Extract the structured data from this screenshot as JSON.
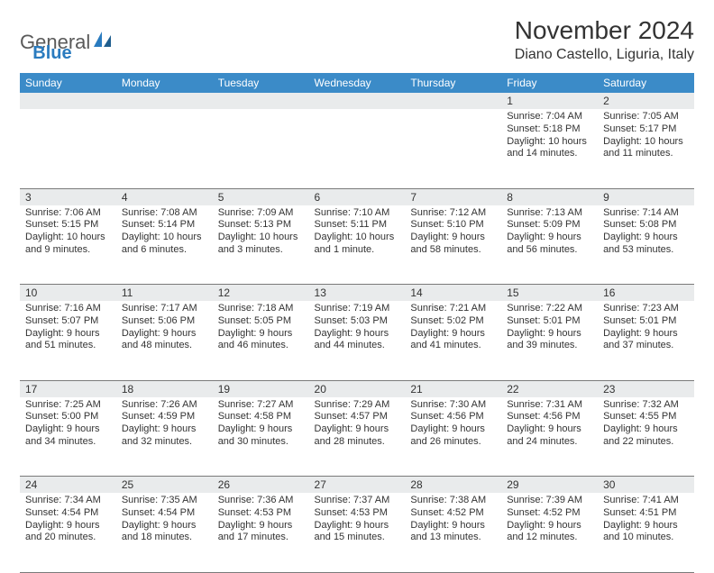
{
  "brand": {
    "name_left": "General",
    "name_right": "Blue"
  },
  "header": {
    "month_title": "November 2024",
    "location": "Diano Castello, Liguria, Italy"
  },
  "style": {
    "header_bg": "#3b8bc8",
    "header_text": "#ffffff",
    "daynum_bg": "#e9ebec",
    "cell_border": "#7a7a7a",
    "body_text": "#333333",
    "font_size_header": 12,
    "font_size_cell": 11
  },
  "days_of_week": [
    "Sunday",
    "Monday",
    "Tuesday",
    "Wednesday",
    "Thursday",
    "Friday",
    "Saturday"
  ],
  "weeks": [
    [
      null,
      null,
      null,
      null,
      null,
      {
        "n": "1",
        "sunrise": "Sunrise: 7:04 AM",
        "sunset": "Sunset: 5:18 PM",
        "day1": "Daylight: 10 hours",
        "day2": "and 14 minutes."
      },
      {
        "n": "2",
        "sunrise": "Sunrise: 7:05 AM",
        "sunset": "Sunset: 5:17 PM",
        "day1": "Daylight: 10 hours",
        "day2": "and 11 minutes."
      }
    ],
    [
      {
        "n": "3",
        "sunrise": "Sunrise: 7:06 AM",
        "sunset": "Sunset: 5:15 PM",
        "day1": "Daylight: 10 hours",
        "day2": "and 9 minutes."
      },
      {
        "n": "4",
        "sunrise": "Sunrise: 7:08 AM",
        "sunset": "Sunset: 5:14 PM",
        "day1": "Daylight: 10 hours",
        "day2": "and 6 minutes."
      },
      {
        "n": "5",
        "sunrise": "Sunrise: 7:09 AM",
        "sunset": "Sunset: 5:13 PM",
        "day1": "Daylight: 10 hours",
        "day2": "and 3 minutes."
      },
      {
        "n": "6",
        "sunrise": "Sunrise: 7:10 AM",
        "sunset": "Sunset: 5:11 PM",
        "day1": "Daylight: 10 hours",
        "day2": "and 1 minute."
      },
      {
        "n": "7",
        "sunrise": "Sunrise: 7:12 AM",
        "sunset": "Sunset: 5:10 PM",
        "day1": "Daylight: 9 hours",
        "day2": "and 58 minutes."
      },
      {
        "n": "8",
        "sunrise": "Sunrise: 7:13 AM",
        "sunset": "Sunset: 5:09 PM",
        "day1": "Daylight: 9 hours",
        "day2": "and 56 minutes."
      },
      {
        "n": "9",
        "sunrise": "Sunrise: 7:14 AM",
        "sunset": "Sunset: 5:08 PM",
        "day1": "Daylight: 9 hours",
        "day2": "and 53 minutes."
      }
    ],
    [
      {
        "n": "10",
        "sunrise": "Sunrise: 7:16 AM",
        "sunset": "Sunset: 5:07 PM",
        "day1": "Daylight: 9 hours",
        "day2": "and 51 minutes."
      },
      {
        "n": "11",
        "sunrise": "Sunrise: 7:17 AM",
        "sunset": "Sunset: 5:06 PM",
        "day1": "Daylight: 9 hours",
        "day2": "and 48 minutes."
      },
      {
        "n": "12",
        "sunrise": "Sunrise: 7:18 AM",
        "sunset": "Sunset: 5:05 PM",
        "day1": "Daylight: 9 hours",
        "day2": "and 46 minutes."
      },
      {
        "n": "13",
        "sunrise": "Sunrise: 7:19 AM",
        "sunset": "Sunset: 5:03 PM",
        "day1": "Daylight: 9 hours",
        "day2": "and 44 minutes."
      },
      {
        "n": "14",
        "sunrise": "Sunrise: 7:21 AM",
        "sunset": "Sunset: 5:02 PM",
        "day1": "Daylight: 9 hours",
        "day2": "and 41 minutes."
      },
      {
        "n": "15",
        "sunrise": "Sunrise: 7:22 AM",
        "sunset": "Sunset: 5:01 PM",
        "day1": "Daylight: 9 hours",
        "day2": "and 39 minutes."
      },
      {
        "n": "16",
        "sunrise": "Sunrise: 7:23 AM",
        "sunset": "Sunset: 5:01 PM",
        "day1": "Daylight: 9 hours",
        "day2": "and 37 minutes."
      }
    ],
    [
      {
        "n": "17",
        "sunrise": "Sunrise: 7:25 AM",
        "sunset": "Sunset: 5:00 PM",
        "day1": "Daylight: 9 hours",
        "day2": "and 34 minutes."
      },
      {
        "n": "18",
        "sunrise": "Sunrise: 7:26 AM",
        "sunset": "Sunset: 4:59 PM",
        "day1": "Daylight: 9 hours",
        "day2": "and 32 minutes."
      },
      {
        "n": "19",
        "sunrise": "Sunrise: 7:27 AM",
        "sunset": "Sunset: 4:58 PM",
        "day1": "Daylight: 9 hours",
        "day2": "and 30 minutes."
      },
      {
        "n": "20",
        "sunrise": "Sunrise: 7:29 AM",
        "sunset": "Sunset: 4:57 PM",
        "day1": "Daylight: 9 hours",
        "day2": "and 28 minutes."
      },
      {
        "n": "21",
        "sunrise": "Sunrise: 7:30 AM",
        "sunset": "Sunset: 4:56 PM",
        "day1": "Daylight: 9 hours",
        "day2": "and 26 minutes."
      },
      {
        "n": "22",
        "sunrise": "Sunrise: 7:31 AM",
        "sunset": "Sunset: 4:56 PM",
        "day1": "Daylight: 9 hours",
        "day2": "and 24 minutes."
      },
      {
        "n": "23",
        "sunrise": "Sunrise: 7:32 AM",
        "sunset": "Sunset: 4:55 PM",
        "day1": "Daylight: 9 hours",
        "day2": "and 22 minutes."
      }
    ],
    [
      {
        "n": "24",
        "sunrise": "Sunrise: 7:34 AM",
        "sunset": "Sunset: 4:54 PM",
        "day1": "Daylight: 9 hours",
        "day2": "and 20 minutes."
      },
      {
        "n": "25",
        "sunrise": "Sunrise: 7:35 AM",
        "sunset": "Sunset: 4:54 PM",
        "day1": "Daylight: 9 hours",
        "day2": "and 18 minutes."
      },
      {
        "n": "26",
        "sunrise": "Sunrise: 7:36 AM",
        "sunset": "Sunset: 4:53 PM",
        "day1": "Daylight: 9 hours",
        "day2": "and 17 minutes."
      },
      {
        "n": "27",
        "sunrise": "Sunrise: 7:37 AM",
        "sunset": "Sunset: 4:53 PM",
        "day1": "Daylight: 9 hours",
        "day2": "and 15 minutes."
      },
      {
        "n": "28",
        "sunrise": "Sunrise: 7:38 AM",
        "sunset": "Sunset: 4:52 PM",
        "day1": "Daylight: 9 hours",
        "day2": "and 13 minutes."
      },
      {
        "n": "29",
        "sunrise": "Sunrise: 7:39 AM",
        "sunset": "Sunset: 4:52 PM",
        "day1": "Daylight: 9 hours",
        "day2": "and 12 minutes."
      },
      {
        "n": "30",
        "sunrise": "Sunrise: 7:41 AM",
        "sunset": "Sunset: 4:51 PM",
        "day1": "Daylight: 9 hours",
        "day2": "and 10 minutes."
      }
    ]
  ]
}
